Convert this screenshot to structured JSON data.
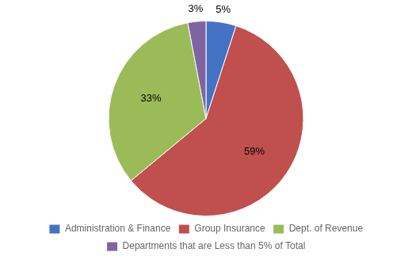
{
  "chart_data": {
    "type": "pie",
    "categories": [
      "Administration & Finance",
      "Group Insurance",
      "Dept. of Revenue",
      "Departments that are Less than 5% of Total"
    ],
    "values": [
      5,
      59,
      33,
      3
    ],
    "value_labels": [
      "5%",
      "59%",
      "33%",
      "3%"
    ],
    "colors": [
      "#4472C4",
      "#C0504D",
      "#9BBB59",
      "#8064A2"
    ],
    "data_labels": true,
    "legend": "bottom"
  }
}
